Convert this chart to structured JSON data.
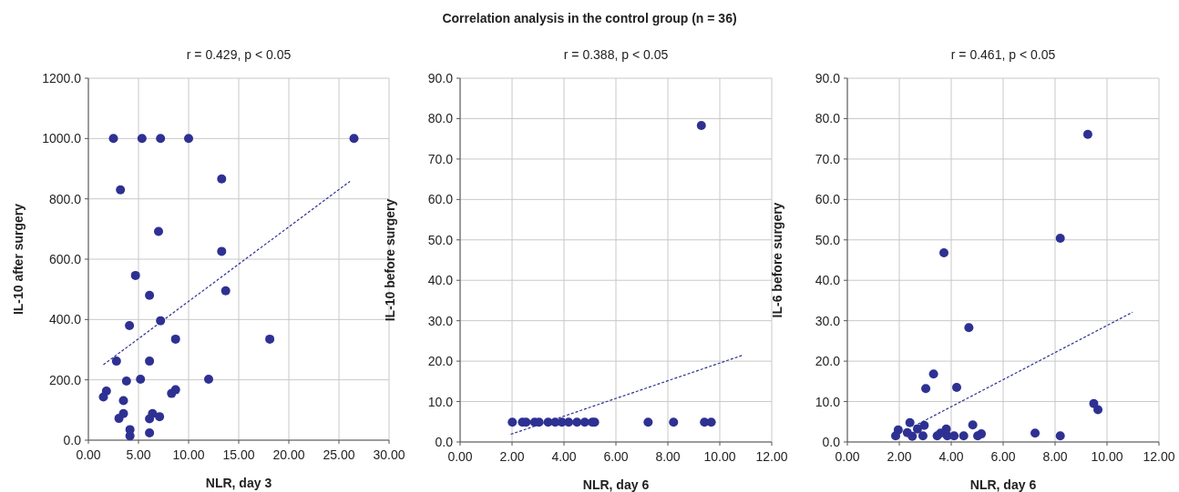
{
  "chart_data": [
    {
      "type": "other",
      "title": "Correlation analysis in the control group (n = 36)"
    },
    {
      "type": "scatter",
      "subtitle": "r = 0.429, p < 0.05",
      "xlabel": "NLR, day 3",
      "ylabel": "IL-10 after surgery",
      "xlim": [
        0,
        30
      ],
      "ylim": [
        0,
        1200
      ],
      "xticks": [
        {
          "value": 0,
          "label": "0.00"
        },
        {
          "value": 5,
          "label": "5.00"
        },
        {
          "value": 10,
          "label": "10.00"
        },
        {
          "value": 15,
          "label": "15.00"
        },
        {
          "value": 20,
          "label": "20.00"
        },
        {
          "value": 25,
          "label": "25.00"
        },
        {
          "value": 30,
          "label": "30.00"
        }
      ],
      "yticks": [
        {
          "value": 0,
          "label": "0.0"
        },
        {
          "value": 200,
          "label": "200.0"
        },
        {
          "value": 400,
          "label": "400.0"
        },
        {
          "value": 600,
          "label": "600.0"
        },
        {
          "value": 800,
          "label": "800.0"
        },
        {
          "value": 1000,
          "label": "1000.0"
        },
        {
          "value": 1200,
          "label": "1200.0"
        }
      ],
      "grid": true,
      "marker": "circle",
      "series": [
        {
          "type": "scatter",
          "color": "#2e3192",
          "x": [
            2.5,
            5.35,
            7.2,
            10.0,
            26.5,
            13.3,
            3.2,
            7.0,
            13.3,
            4.7,
            13.7,
            6.1,
            7.2,
            4.1,
            8.7,
            18.1,
            2.8,
            6.1,
            3.8,
            5.2,
            12.0,
            1.8,
            1.5,
            3.5,
            3.5,
            3.05,
            6.4,
            6.1,
            7.1,
            8.3,
            8.7,
            4.15,
            4.15,
            6.1
          ],
          "values": [
            1000,
            1000,
            1000,
            1000,
            1000,
            866,
            830,
            692,
            626,
            546,
            495,
            480,
            396,
            380,
            335,
            335,
            262,
            262,
            196,
            202,
            202,
            163,
            143,
            131,
            88,
            72,
            88,
            71,
            78,
            155,
            167,
            35,
            14,
            24
          ]
        },
        {
          "type": "line",
          "color": "#2e3192",
          "line_style": "dashed",
          "marker": "none",
          "x": [
            1.5,
            26.1
          ],
          "values": [
            250,
            858
          ]
        }
      ]
    },
    {
      "type": "scatter",
      "subtitle": "r = 0.388, p < 0.05",
      "xlabel": "NLR, day 6",
      "ylabel": "IL-10 before surgery",
      "xlim": [
        0,
        12
      ],
      "ylim": [
        0,
        90
      ],
      "xticks": [
        {
          "value": 0,
          "label": "0.00"
        },
        {
          "value": 2,
          "label": "2.00"
        },
        {
          "value": 4,
          "label": "4.00"
        },
        {
          "value": 6,
          "label": "6.00"
        },
        {
          "value": 8,
          "label": "8.00"
        },
        {
          "value": 10,
          "label": "10.00"
        },
        {
          "value": 12,
          "label": "12.00"
        }
      ],
      "yticks": [
        {
          "value": 0,
          "label": "0.0"
        },
        {
          "value": 10,
          "label": "10.0"
        },
        {
          "value": 20,
          "label": "20.0"
        },
        {
          "value": 30,
          "label": "30.0"
        },
        {
          "value": 40,
          "label": "40.0"
        },
        {
          "value": 50,
          "label": "50.0"
        },
        {
          "value": 60,
          "label": "60.0"
        },
        {
          "value": 70,
          "label": "70.0"
        },
        {
          "value": 80,
          "label": "80.0"
        },
        {
          "value": 90,
          "label": "90.0"
        }
      ],
      "grid": true,
      "marker": "circle",
      "series": [
        {
          "type": "scatter",
          "color": "#2e3192",
          "x": [
            2.01,
            2.4,
            2.54,
            2.87,
            3.04,
            3.39,
            3.66,
            3.92,
            4.18,
            4.5,
            4.8,
            5.09,
            5.18,
            7.24,
            8.22,
            9.41,
            9.67,
            9.29
          ],
          "values": [
            4.9,
            4.9,
            4.9,
            4.9,
            4.9,
            4.9,
            4.9,
            4.9,
            4.9,
            4.9,
            4.9,
            4.9,
            4.9,
            4.9,
            4.9,
            4.9,
            4.9,
            78.3
          ]
        },
        {
          "type": "line",
          "color": "#2e3192",
          "line_style": "dashed",
          "marker": "none",
          "x": [
            1.95,
            10.9
          ],
          "values": [
            1.9,
            21.5
          ]
        }
      ]
    },
    {
      "type": "scatter",
      "subtitle": "r = 0.461, p < 0.05",
      "xlabel": "NLR, day 6",
      "ylabel": "IL-6 before surgery",
      "xlim": [
        0,
        12
      ],
      "ylim": [
        0,
        90
      ],
      "xticks": [
        {
          "value": 0,
          "label": "0.00"
        },
        {
          "value": 2,
          "label": "2.00"
        },
        {
          "value": 4,
          "label": "4.00"
        },
        {
          "value": 6,
          "label": "6.00"
        },
        {
          "value": 8,
          "label": "8.00"
        },
        {
          "value": 10,
          "label": "10.00"
        },
        {
          "value": 12,
          "label": "12.00"
        }
      ],
      "yticks": [
        {
          "value": 0,
          "label": "0.0"
        },
        {
          "value": 10,
          "label": "10.0"
        },
        {
          "value": 20,
          "label": "20.0"
        },
        {
          "value": 30,
          "label": "30.0"
        },
        {
          "value": 40,
          "label": "40.0"
        },
        {
          "value": 50,
          "label": "50.0"
        },
        {
          "value": 60,
          "label": "60.0"
        },
        {
          "value": 70,
          "label": "70.0"
        },
        {
          "value": 80,
          "label": "80.0"
        },
        {
          "value": 90,
          "label": "90.0"
        }
      ],
      "grid": true,
      "marker": "circle",
      "series": [
        {
          "type": "scatter",
          "color": "#2e3192",
          "x": [
            9.26,
            8.2,
            3.72,
            4.68,
            3.32,
            3.02,
            4.21,
            9.49,
            9.65,
            2.41,
            2.96,
            4.83,
            1.96,
            2.7,
            3.81,
            2.31,
            7.23,
            3.59,
            5.16,
            1.86,
            2.5,
            2.91,
            3.46,
            3.85,
            4.11,
            4.48,
            5.02,
            8.2
          ],
          "values": [
            76.1,
            50.4,
            46.8,
            28.3,
            16.8,
            13.2,
            13.5,
            9.5,
            8.0,
            4.8,
            4.1,
            4.2,
            3.0,
            3.2,
            3.2,
            2.3,
            2.2,
            2.2,
            2.0,
            1.5,
            1.4,
            1.5,
            1.5,
            1.5,
            1.5,
            1.5,
            1.5,
            1.5
          ]
        },
        {
          "type": "line",
          "color": "#2e3192",
          "line_style": "dashed",
          "marker": "none",
          "x": [
            2.56,
            10.98
          ],
          "values": [
            3.9,
            32.1
          ]
        }
      ]
    }
  ]
}
